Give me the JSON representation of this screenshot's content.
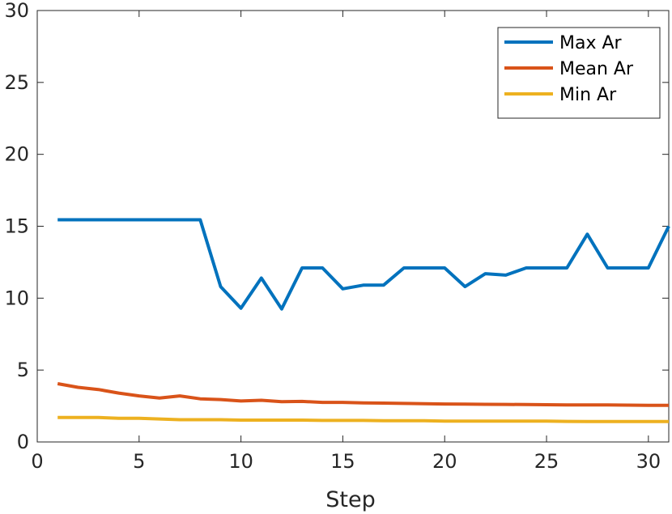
{
  "chart_data": {
    "type": "line",
    "title": "",
    "xlabel": "Step",
    "ylabel": "",
    "xlim": [
      0,
      31
    ],
    "ylim": [
      0,
      30
    ],
    "xticks": [
      0,
      5,
      10,
      15,
      20,
      25,
      30
    ],
    "yticks": [
      0,
      5,
      10,
      15,
      20,
      25,
      30
    ],
    "grid": false,
    "legend_position": "top-right",
    "x": [
      1,
      2,
      3,
      4,
      5,
      6,
      7,
      8,
      9,
      10,
      11,
      12,
      13,
      14,
      15,
      16,
      17,
      18,
      19,
      20,
      21,
      22,
      23,
      24,
      25,
      26,
      27,
      28,
      29,
      30,
      31
    ],
    "series": [
      {
        "name": "Max Ar",
        "color": "#0072BD",
        "values": [
          15.45,
          15.45,
          15.45,
          15.45,
          15.45,
          15.45,
          15.45,
          15.45,
          10.8,
          9.3,
          11.4,
          9.25,
          12.1,
          12.1,
          10.65,
          10.9,
          10.9,
          12.1,
          12.1,
          12.1,
          10.8,
          11.7,
          11.6,
          12.1,
          12.1,
          12.1,
          14.45,
          12.1,
          12.1,
          12.1,
          15.0
        ]
      },
      {
        "name": "Mean Ar",
        "color": "#D95319",
        "values": [
          4.05,
          3.8,
          3.65,
          3.4,
          3.2,
          3.05,
          3.2,
          3.0,
          2.95,
          2.85,
          2.9,
          2.8,
          2.82,
          2.75,
          2.75,
          2.72,
          2.7,
          2.68,
          2.66,
          2.64,
          2.63,
          2.62,
          2.61,
          2.6,
          2.59,
          2.58,
          2.58,
          2.57,
          2.56,
          2.55,
          2.55
        ]
      },
      {
        "name": "Min Ar",
        "color": "#EDB120",
        "values": [
          1.7,
          1.7,
          1.7,
          1.65,
          1.65,
          1.6,
          1.55,
          1.55,
          1.55,
          1.52,
          1.52,
          1.52,
          1.52,
          1.5,
          1.5,
          1.5,
          1.48,
          1.48,
          1.48,
          1.45,
          1.45,
          1.45,
          1.45,
          1.45,
          1.45,
          1.43,
          1.42,
          1.42,
          1.42,
          1.42,
          1.42
        ]
      }
    ]
  }
}
